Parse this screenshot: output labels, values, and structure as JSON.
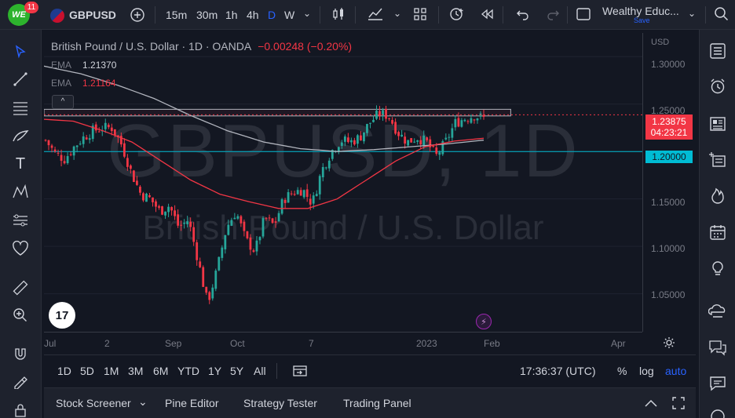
{
  "header": {
    "avatar_initials": "WE",
    "notification_count": "11",
    "symbol": "GBPUSD",
    "timeframes": [
      "15m",
      "30m",
      "1h",
      "4h",
      "D",
      "W"
    ],
    "active_timeframe": "D",
    "layout_name": "Wealthy Educ...",
    "save_label": "Save"
  },
  "legend": {
    "title": "British Pound / U.S. Dollar · 1D · OANDA",
    "change": "−0.00248 (−0.20%)",
    "ema_label": "EMA",
    "ema1_value": "1.21370",
    "ema2_value": "1.21164"
  },
  "watermark": {
    "symbol": "GBPUSD, 1D",
    "name": "British Pound / U.S. Dollar"
  },
  "price_axis": {
    "currency": "USD",
    "ticks": [
      "1.30000",
      "1.25000",
      "1.20000",
      "1.15000",
      "1.10000",
      "1.05000"
    ],
    "last_price": "1.23875",
    "countdown": "04:23:21",
    "level_line": "1.20000"
  },
  "time_axis": {
    "ticks": [
      "Jul",
      "2",
      "Sep",
      "Oct",
      "7",
      "2023",
      "Feb",
      "Apr"
    ]
  },
  "range_bar": {
    "ranges": [
      "1D",
      "5D",
      "1M",
      "3M",
      "6M",
      "YTD",
      "1Y",
      "5Y",
      "All"
    ],
    "clock": "17:36:37 (UTC)",
    "percent": "%",
    "log": "log",
    "auto": "auto"
  },
  "bottom_panel": {
    "tabs": [
      "Stock Screener",
      "Pine Editor",
      "Strategy Tester",
      "Trading Panel"
    ]
  },
  "colors": {
    "up": "#26a69a",
    "down": "#f23645",
    "ema_fast": "#f23645",
    "ema_slow": "#b2b5be",
    "level": "#00bcd4",
    "accent": "#2962ff"
  },
  "chart_data": {
    "type": "candlestick",
    "symbol": "GBPUSD",
    "interval": "1D",
    "ylim": [
      1.01,
      1.325
    ],
    "y_ticks": [
      1.3,
      1.25,
      1.2,
      1.15,
      1.1,
      1.05
    ],
    "last_price": 1.23875,
    "horizontal_levels": [
      1.2
    ],
    "resistance_zone": [
      1.2375,
      1.2445
    ],
    "close_path": [
      1.212,
      1.198,
      1.192,
      1.205,
      1.215,
      1.222,
      1.225,
      1.225,
      1.207,
      1.178,
      1.155,
      1.15,
      1.137,
      1.143,
      1.12,
      1.128,
      1.086,
      1.04,
      1.075,
      1.12,
      1.137,
      1.107,
      1.095,
      1.13,
      1.122,
      1.15,
      1.157,
      1.16,
      1.145,
      1.18,
      1.2,
      1.212,
      1.21,
      1.215,
      1.23,
      1.24,
      1.238,
      1.22,
      1.21,
      1.215,
      1.21,
      1.195,
      1.21,
      1.23,
      1.235,
      1.238,
      1.235
    ],
    "ema_fast_path": [
      1.234,
      1.232,
      1.222,
      1.21,
      1.19,
      1.17,
      1.155,
      1.147,
      1.14,
      1.14,
      1.15,
      1.17,
      1.19,
      1.205,
      1.211,
      1.214
    ],
    "ema_slow_path": [
      1.29,
      1.282,
      1.27,
      1.256,
      1.238,
      1.222,
      1.21,
      1.203,
      1.2,
      1.202,
      1.205,
      1.208,
      1.212
    ]
  }
}
